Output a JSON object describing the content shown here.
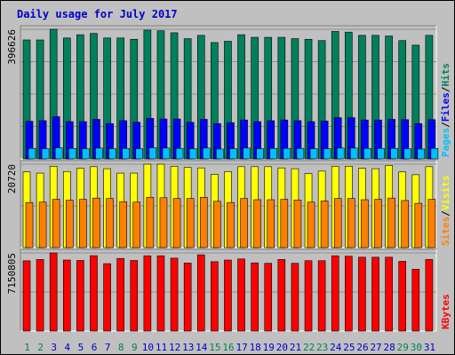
{
  "colors": {
    "background": "#c0c0c0",
    "title": "#0000cc",
    "hits": "#00805c",
    "files": "#0000ff",
    "pages": "#00c0ff",
    "visits": "#ffff00",
    "sites": "#ff8000",
    "kbytes": "#ff0000",
    "weekend_label": "#00805c",
    "weekday_label": "#0000cc"
  },
  "chart_data": {
    "type": "bar",
    "title": "Daily usage for July 2017",
    "categories": [
      "1",
      "2",
      "3",
      "4",
      "5",
      "6",
      "7",
      "8",
      "9",
      "10",
      "11",
      "12",
      "13",
      "14",
      "15",
      "16",
      "17",
      "18",
      "19",
      "20",
      "21",
      "22",
      "23",
      "24",
      "25",
      "26",
      "27",
      "28",
      "29",
      "30",
      "31"
    ],
    "weekend_days": [
      "1",
      "2",
      "8",
      "9",
      "15",
      "16",
      "22",
      "23",
      "29",
      "30"
    ],
    "panels": [
      {
        "name": "hits-files-pages",
        "max_label": "396626",
        "ymax": 396626,
        "legend": [
          {
            "text": "Pages",
            "color": "#00c0ff"
          },
          {
            "text": "/",
            "color": "#000000"
          },
          {
            "text": "Files",
            "color": "#0000ff"
          },
          {
            "text": "/",
            "color": "#000000"
          },
          {
            "text": "Hits",
            "color": "#00805c"
          }
        ],
        "series": [
          {
            "name": "Hits",
            "color": "#00805c",
            "values": [
              364000,
              364000,
              396626,
              370000,
              380000,
              384000,
              370000,
              370000,
              366000,
              394000,
              392000,
              386000,
              368000,
              378000,
              356000,
              360000,
              380000,
              372000,
              372000,
              372000,
              368000,
              366000,
              362000,
              390000,
              388000,
              378000,
              378000,
              376000,
              362000,
              348000,
              378000
            ]
          },
          {
            "name": "Files",
            "color": "#0000ff",
            "values": [
              115000,
              117000,
              129000,
              114000,
              114000,
              121000,
              108000,
              117000,
              112000,
              124000,
              122000,
              122000,
              112000,
              121000,
              108000,
              111000,
              119000,
              114000,
              117000,
              119000,
              117000,
              114000,
              116000,
              126000,
              126000,
              119000,
              119000,
              121000,
              120000,
              108000,
              120000
            ]
          },
          {
            "name": "Pages",
            "color": "#00c0ff",
            "values": [
              32000,
              31000,
              34000,
              32000,
              31000,
              33000,
              31000,
              32000,
              31000,
              34000,
              33000,
              32000,
              31000,
              33000,
              30000,
              31000,
              33000,
              31000,
              32000,
              32000,
              32000,
              31000,
              31000,
              33000,
              33000,
              32000,
              32000,
              32000,
              31000,
              30000,
              32000
            ]
          }
        ]
      },
      {
        "name": "visits-sites",
        "max_label": "20720",
        "ymax": 20720,
        "legend": [
          {
            "text": "Sites",
            "color": "#ff8000"
          },
          {
            "text": "/",
            "color": "#000000"
          },
          {
            "text": "Visits",
            "color": "#ffff00"
          }
        ],
        "series": [
          {
            "name": "Visits",
            "color": "#ffff00",
            "values": [
              18800,
              18500,
              20200,
              18900,
              19700,
              20100,
              19600,
              18500,
              18500,
              20720,
              20720,
              20200,
              19900,
              19800,
              18200,
              18900,
              20100,
              20100,
              20100,
              19800,
              19600,
              18400,
              19000,
              20200,
              20200,
              19700,
              19600,
              20400,
              18800,
              18100,
              20100
            ]
          },
          {
            "name": "Sites",
            "color": "#ff8000",
            "values": [
              11200,
              11300,
              12000,
              11800,
              12000,
              12300,
              12200,
              11400,
              11300,
              12500,
              12400,
              12200,
              12200,
              12500,
              11500,
              11200,
              12200,
              11900,
              11900,
              12000,
              11800,
              11300,
              11600,
              12200,
              12200,
              11900,
              12000,
              12300,
              11700,
              11000,
              12000
            ]
          }
        ]
      },
      {
        "name": "kbytes",
        "max_label": "7150805",
        "ymax": 7150805,
        "legend": [
          {
            "text": "KBytes",
            "color": "#ff0000"
          }
        ],
        "series": [
          {
            "name": "KBytes",
            "color": "#ff0000",
            "values": [
              6430000,
              6550000,
              7150805,
              6500000,
              6460000,
              6900000,
              6170000,
              6650000,
              6460000,
              6890000,
              6890000,
              6670000,
              6230000,
              6980000,
              6350000,
              6500000,
              6600000,
              6240000,
              6200000,
              6550000,
              6200000,
              6440000,
              6440000,
              6890000,
              6850000,
              6760000,
              6760000,
              6760000,
              6380000,
              5660000,
              6550000
            ]
          }
        ]
      }
    ]
  }
}
